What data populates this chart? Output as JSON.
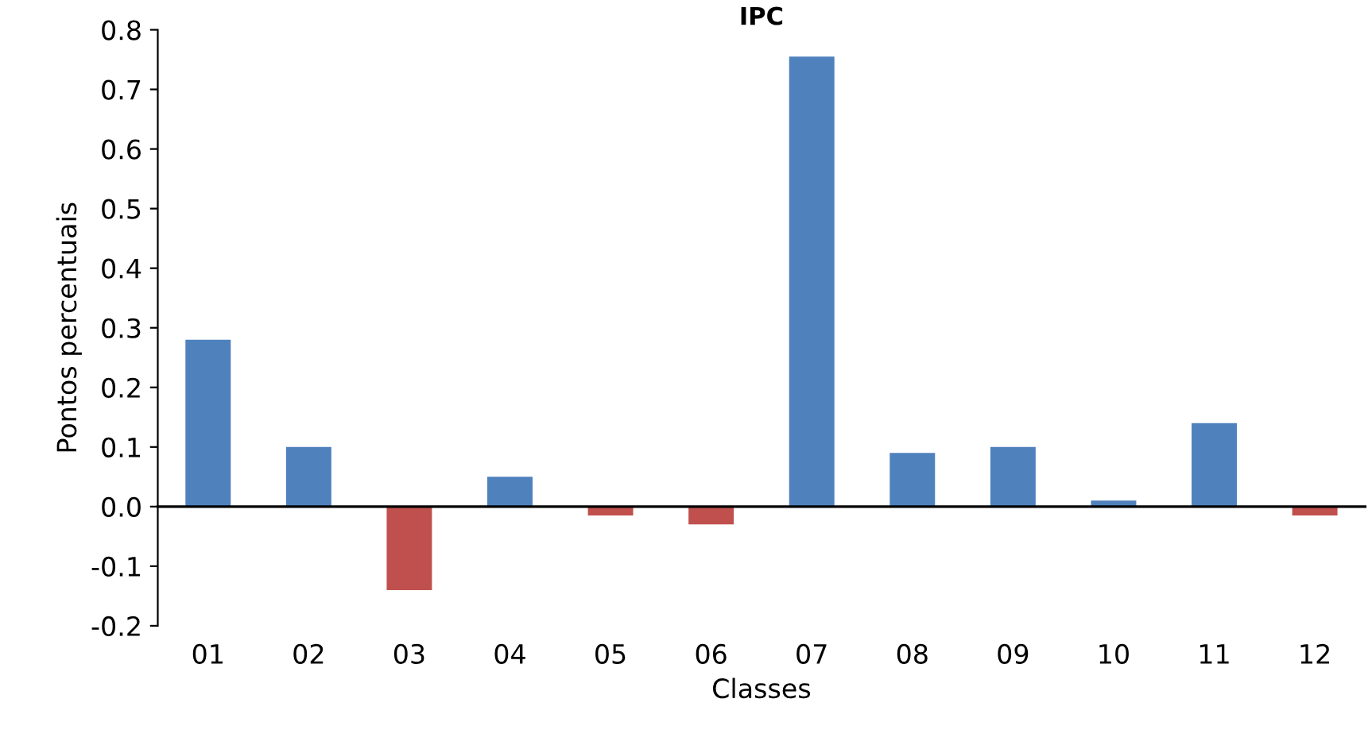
{
  "chart_data": {
    "type": "bar",
    "title": "IPC",
    "xlabel": "Classes",
    "ylabel": "Pontos percentuais",
    "categories": [
      "01",
      "02",
      "03",
      "04",
      "05",
      "06",
      "07",
      "08",
      "09",
      "10",
      "11",
      "12"
    ],
    "values": [
      0.28,
      0.1,
      -0.14,
      0.05,
      -0.015,
      -0.03,
      0.755,
      0.09,
      0.1,
      0.01,
      0.14,
      -0.015
    ],
    "colors": [
      "#4f81bd",
      "#4f81bd",
      "#c0504d",
      "#4f81bd",
      "#c0504d",
      "#c0504d",
      "#4f81bd",
      "#4f81bd",
      "#4f81bd",
      "#4f81bd",
      "#4f81bd",
      "#c0504d"
    ],
    "ylim": [
      -0.2,
      0.8
    ],
    "yticks": [
      {
        "value": -0.2,
        "label": "-0.2"
      },
      {
        "value": -0.1,
        "label": "-0.1"
      },
      {
        "value": 0,
        "label": "0.0"
      },
      {
        "value": 0.1,
        "label": "0.1"
      },
      {
        "value": 0.2,
        "label": "0.2"
      },
      {
        "value": 0.3,
        "label": "0.3"
      },
      {
        "value": 0.4,
        "label": "0.4"
      },
      {
        "value": 0.5,
        "label": "0.5"
      },
      {
        "value": 0.6,
        "label": "0.6"
      },
      {
        "value": 0.7,
        "label": "0.7"
      },
      {
        "value": 0.8,
        "label": "0.8"
      }
    ],
    "legend": false
  }
}
